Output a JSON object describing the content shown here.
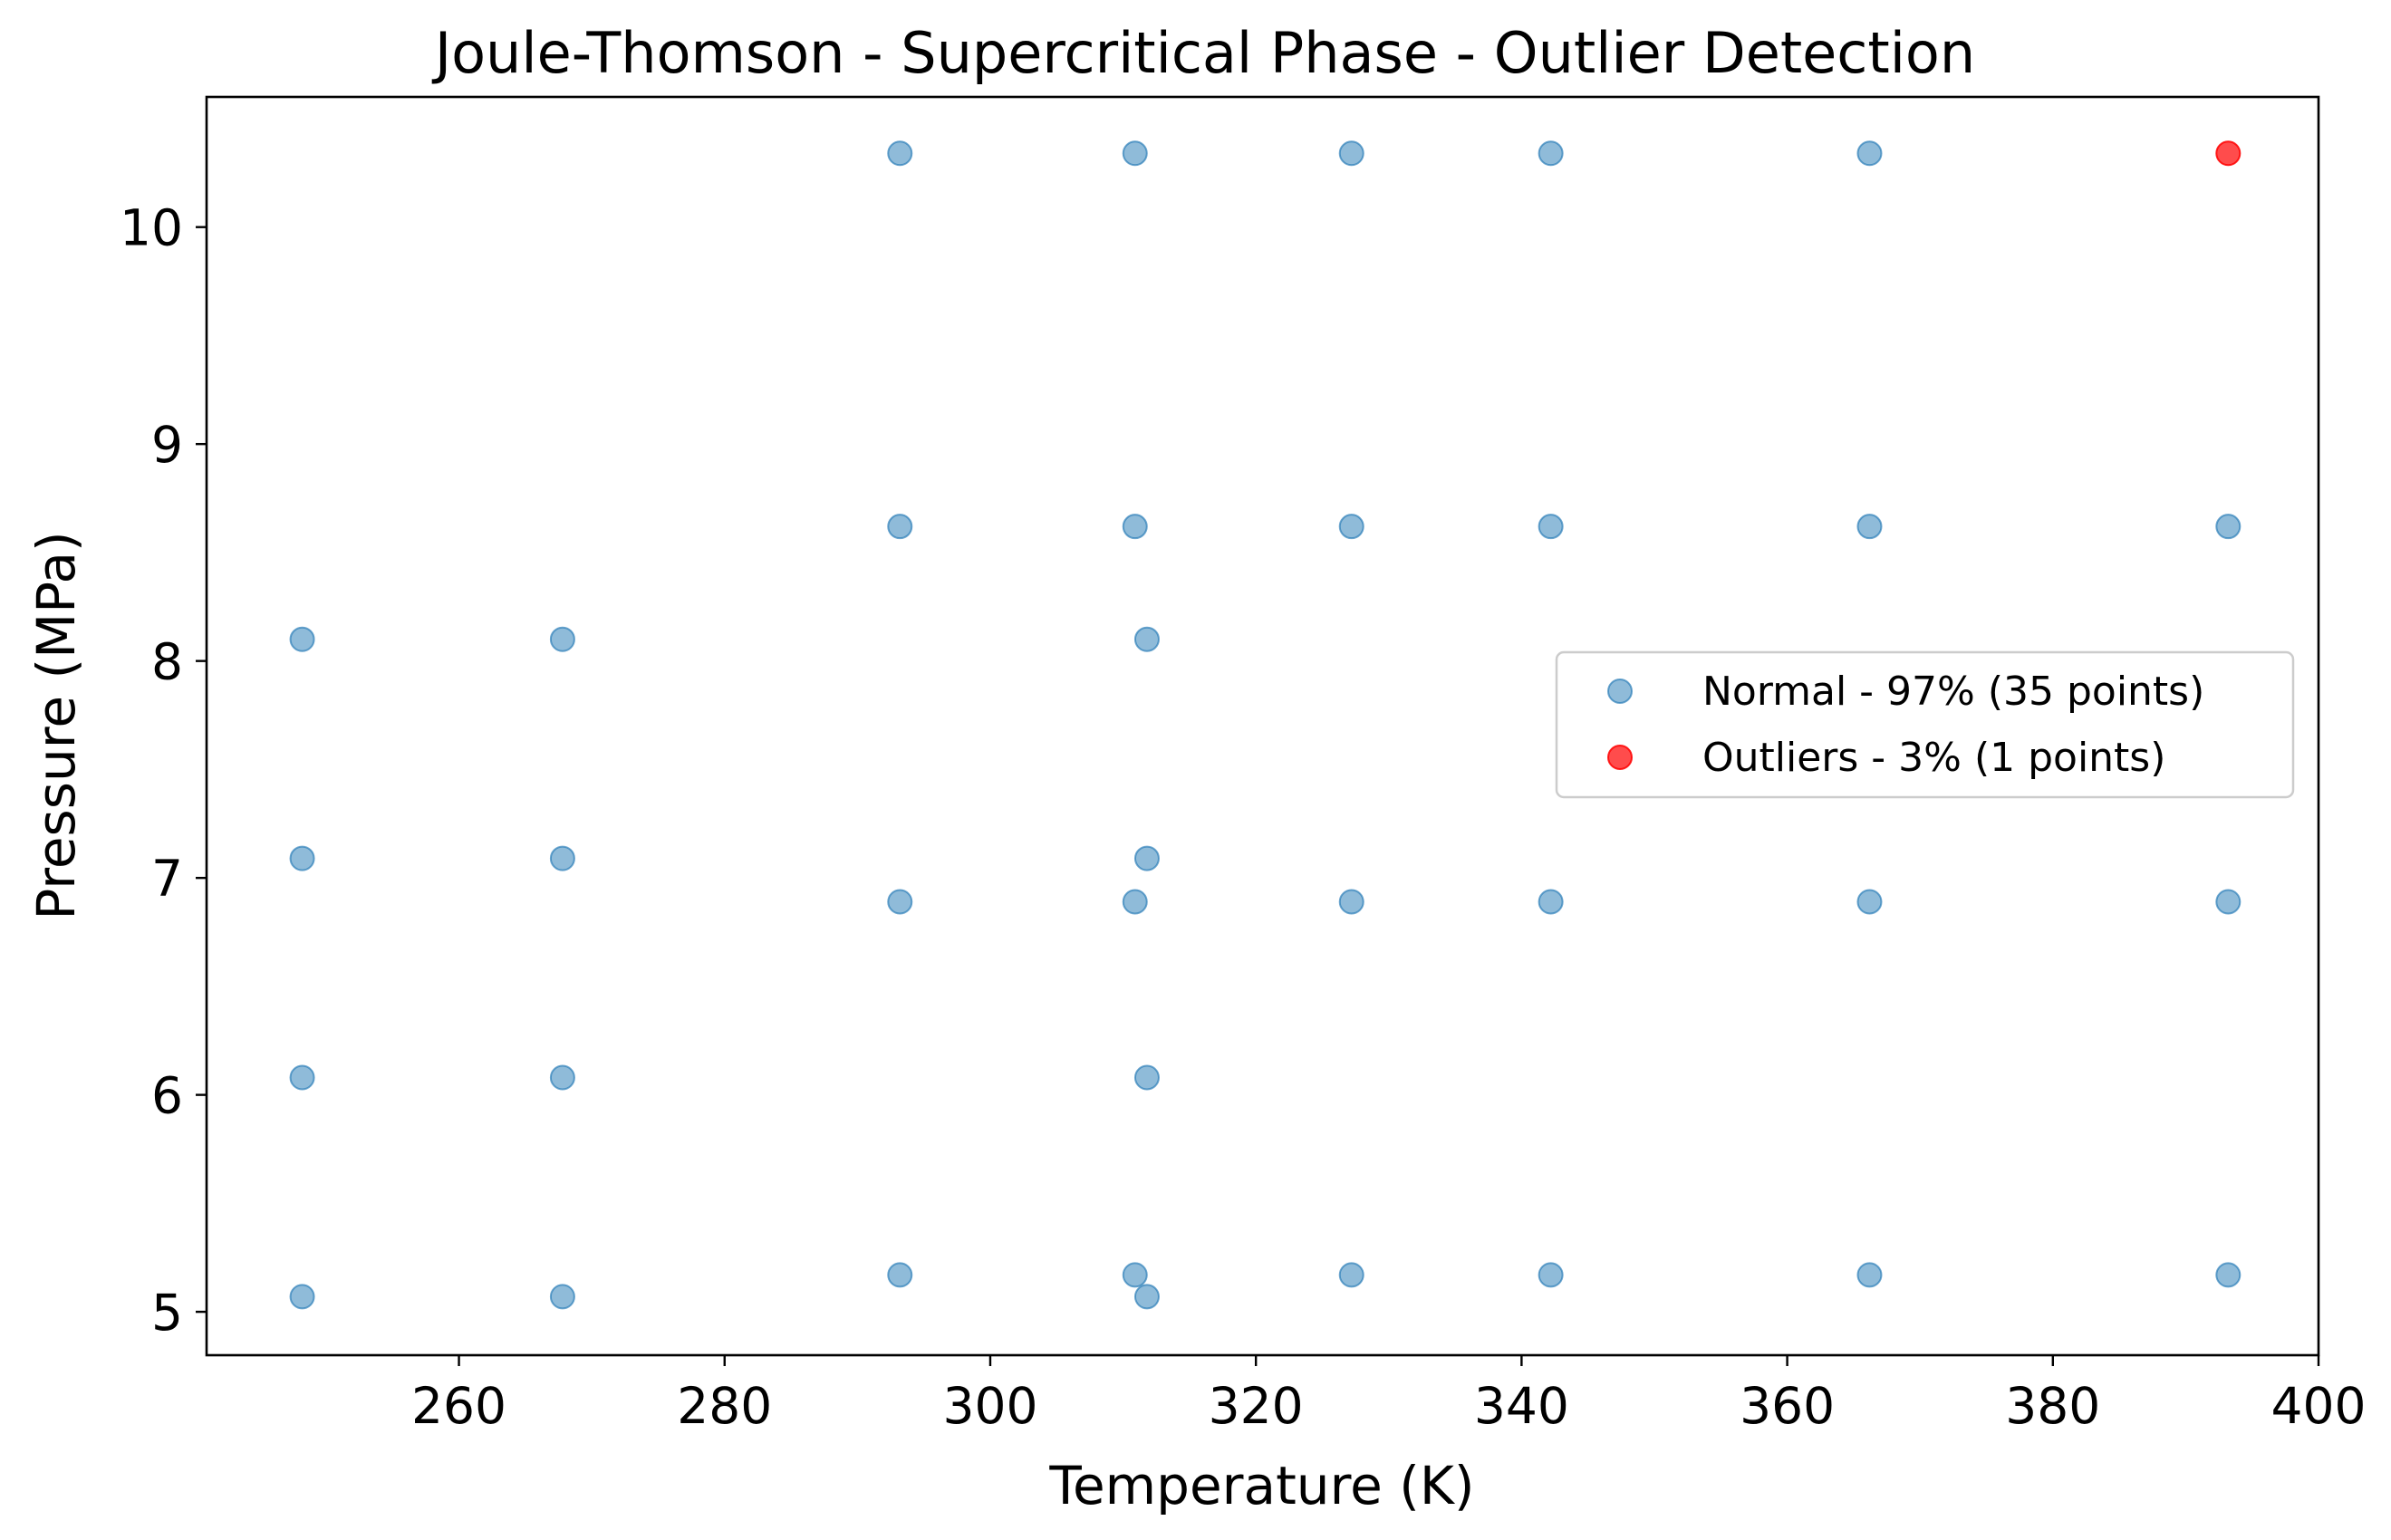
{
  "chart_data": {
    "type": "scatter",
    "title": "Joule-Thomson - Supercritical Phase - Outlier Detection",
    "xlabel": "Temperature (K)",
    "ylabel": "Pressure (MPa)",
    "xlim": [
      241,
      400
    ],
    "ylim": [
      4.8,
      10.6
    ],
    "x_ticks": [
      260,
      280,
      300,
      320,
      340,
      360,
      380,
      400
    ],
    "y_ticks": [
      5,
      6,
      7,
      8,
      9,
      10
    ],
    "grid": false,
    "legend_position": "center-right",
    "series": [
      {
        "name": "Normal - 97% (35 points)",
        "color": "#1f77b4",
        "alpha": 0.5,
        "points": [
          {
            "x": 248.2,
            "y": 8.1
          },
          {
            "x": 248.2,
            "y": 7.09
          },
          {
            "x": 248.2,
            "y": 6.08
          },
          {
            "x": 248.2,
            "y": 5.07
          },
          {
            "x": 267.8,
            "y": 8.1
          },
          {
            "x": 267.8,
            "y": 7.09
          },
          {
            "x": 267.8,
            "y": 6.08
          },
          {
            "x": 267.8,
            "y": 5.07
          },
          {
            "x": 293.2,
            "y": 10.34
          },
          {
            "x": 293.2,
            "y": 8.62
          },
          {
            "x": 293.2,
            "y": 6.89
          },
          {
            "x": 293.2,
            "y": 5.17
          },
          {
            "x": 310.9,
            "y": 10.34
          },
          {
            "x": 310.9,
            "y": 8.62
          },
          {
            "x": 310.9,
            "y": 6.89
          },
          {
            "x": 310.9,
            "y": 5.17
          },
          {
            "x": 311.8,
            "y": 8.1
          },
          {
            "x": 311.8,
            "y": 7.09
          },
          {
            "x": 311.8,
            "y": 6.08
          },
          {
            "x": 311.8,
            "y": 5.07
          },
          {
            "x": 327.2,
            "y": 10.34
          },
          {
            "x": 327.2,
            "y": 8.62
          },
          {
            "x": 327.2,
            "y": 6.89
          },
          {
            "x": 327.2,
            "y": 5.17
          },
          {
            "x": 342.2,
            "y": 10.34
          },
          {
            "x": 342.2,
            "y": 8.62
          },
          {
            "x": 342.2,
            "y": 6.89
          },
          {
            "x": 342.2,
            "y": 5.17
          },
          {
            "x": 366.2,
            "y": 10.34
          },
          {
            "x": 366.2,
            "y": 8.62
          },
          {
            "x": 366.2,
            "y": 6.89
          },
          {
            "x": 366.2,
            "y": 5.17
          },
          {
            "x": 393.2,
            "y": 8.62
          },
          {
            "x": 393.2,
            "y": 6.89
          },
          {
            "x": 393.2,
            "y": 5.17
          }
        ]
      },
      {
        "name": "Outliers - 3% (1 points)",
        "color": "#ff0000",
        "alpha": 0.7,
        "points": [
          {
            "x": 393.2,
            "y": 10.34
          }
        ]
      }
    ]
  }
}
